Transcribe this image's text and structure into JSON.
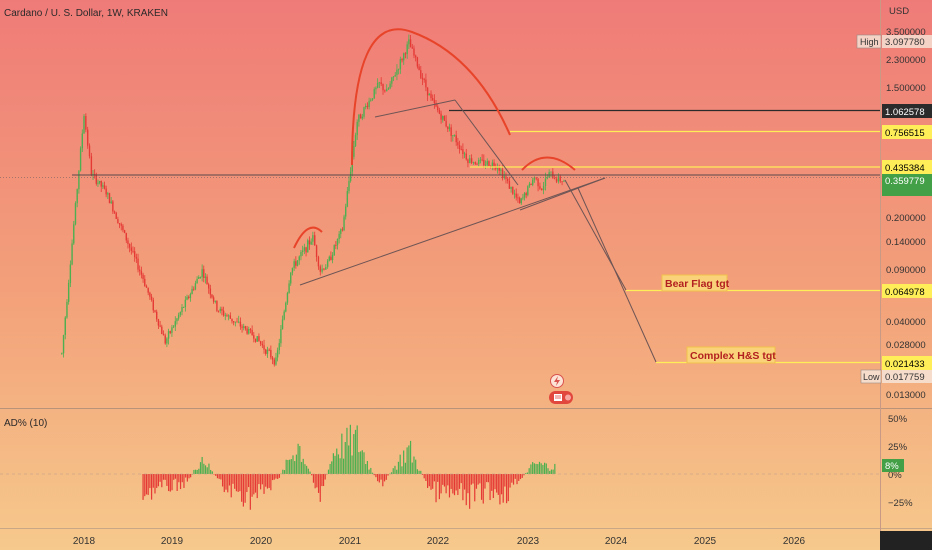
{
  "header": {
    "title": "Cardano / U. S. Dollar, 1W, KRAKEN"
  },
  "price_axis": {
    "unit": "USD",
    "ticks": [
      "3.500000",
      "2.300000",
      "1.500000",
      "0.200000",
      "0.140000",
      "0.090000",
      "0.040000",
      "0.028000",
      "0.013000"
    ]
  },
  "badges": {
    "high_label": "High",
    "high_value": "3.097780",
    "low_label": "Low",
    "low_value": "0.017759",
    "current_value": "0.359779"
  },
  "levels": [
    {
      "value": "1.062578",
      "color": "#2b2b2b",
      "text_color": "#ffffff"
    },
    {
      "value": "0.756515",
      "color": "#ffee58",
      "text_color": "#000000"
    },
    {
      "value": "0.435384",
      "color": "#ffee58",
      "text_color": "#000000"
    },
    {
      "value": "0.064978",
      "color": "#ffee58",
      "text_color": "#000000"
    },
    {
      "value": "0.021433",
      "color": "#ffee58",
      "text_color": "#000000"
    }
  ],
  "annotations": {
    "bear_flag": "Bear Flag tgt",
    "hs": "Complex H&S tgt"
  },
  "indicator": {
    "title": "AD% (10)",
    "ticks": [
      "50%",
      "25%",
      "0%",
      "−25%"
    ],
    "current_value": "8%"
  },
  "time_axis": [
    "2018",
    "2019",
    "2020",
    "2021",
    "2022",
    "2023",
    "2024",
    "2025",
    "2026"
  ],
  "colors": {
    "up": "#4caf50",
    "down": "#e53935",
    "bg_top": "#ef7a7a",
    "bg_bottom": "#f5c98a",
    "arc": "#ef4a2e"
  },
  "chart_data": {
    "type": "line",
    "title": "Cardano / U. S. Dollar, 1W, KRAKEN",
    "ylabel": "USD",
    "yscale": "log",
    "ylim": [
      0.011,
      4.2
    ],
    "x": [
      "2017-10",
      "2018-01",
      "2018-02",
      "2018-04",
      "2018-09",
      "2018-12",
      "2019-05",
      "2019-07",
      "2019-12",
      "2020-03",
      "2020-05",
      "2020-08",
      "2020-09",
      "2020-10",
      "2020-12",
      "2021-02",
      "2021-05",
      "2021-06",
      "2021-09",
      "2021-12",
      "2022-05",
      "2022-06",
      "2022-09",
      "2022-12",
      "2023-02",
      "2023-03",
      "2023-04",
      "2023-05",
      "2023-06"
    ],
    "values": [
      0.025,
      1.0,
      0.4,
      0.3,
      0.08,
      0.03,
      0.09,
      0.05,
      0.033,
      0.022,
      0.09,
      0.15,
      0.09,
      0.1,
      0.17,
      0.9,
      1.6,
      1.4,
      3.0,
      1.25,
      0.5,
      0.48,
      0.46,
      0.25,
      0.38,
      0.32,
      0.4,
      0.37,
      0.36
    ],
    "targets": [
      {
        "label": "Bear Flag tgt",
        "value": 0.064978
      },
      {
        "label": "Complex H&S tgt",
        "value": 0.021433
      }
    ],
    "indicator": {
      "name": "AD% (10)",
      "ylim": [
        -50,
        50
      ],
      "x": [
        "2018-09",
        "2019-03",
        "2019-05",
        "2019-08",
        "2019-12",
        "2020-03",
        "2020-06",
        "2020-09",
        "2020-11",
        "2021-02",
        "2021-05",
        "2021-09",
        "2021-12",
        "2022-05",
        "2022-08",
        "2022-10",
        "2023-02",
        "2023-05"
      ],
      "values": [
        -22,
        -10,
        20,
        -18,
        -28,
        -10,
        35,
        -25,
        30,
        40,
        -15,
        30,
        -20,
        -28,
        -20,
        -25,
        12,
        8
      ]
    }
  }
}
